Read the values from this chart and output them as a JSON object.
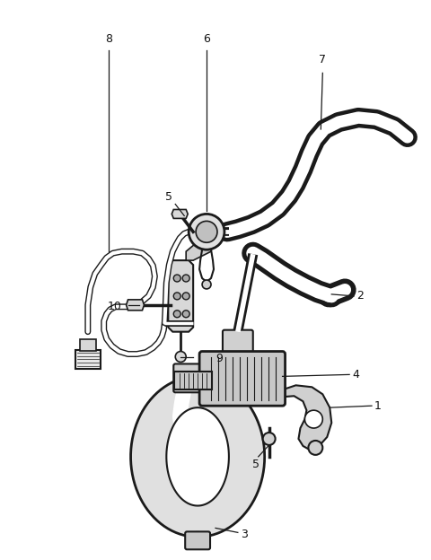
{
  "bg_color": "#ffffff",
  "line_color": "#1a1a1a",
  "label_color": "#111111",
  "fig_width": 4.8,
  "fig_height": 6.24,
  "dpi": 100
}
